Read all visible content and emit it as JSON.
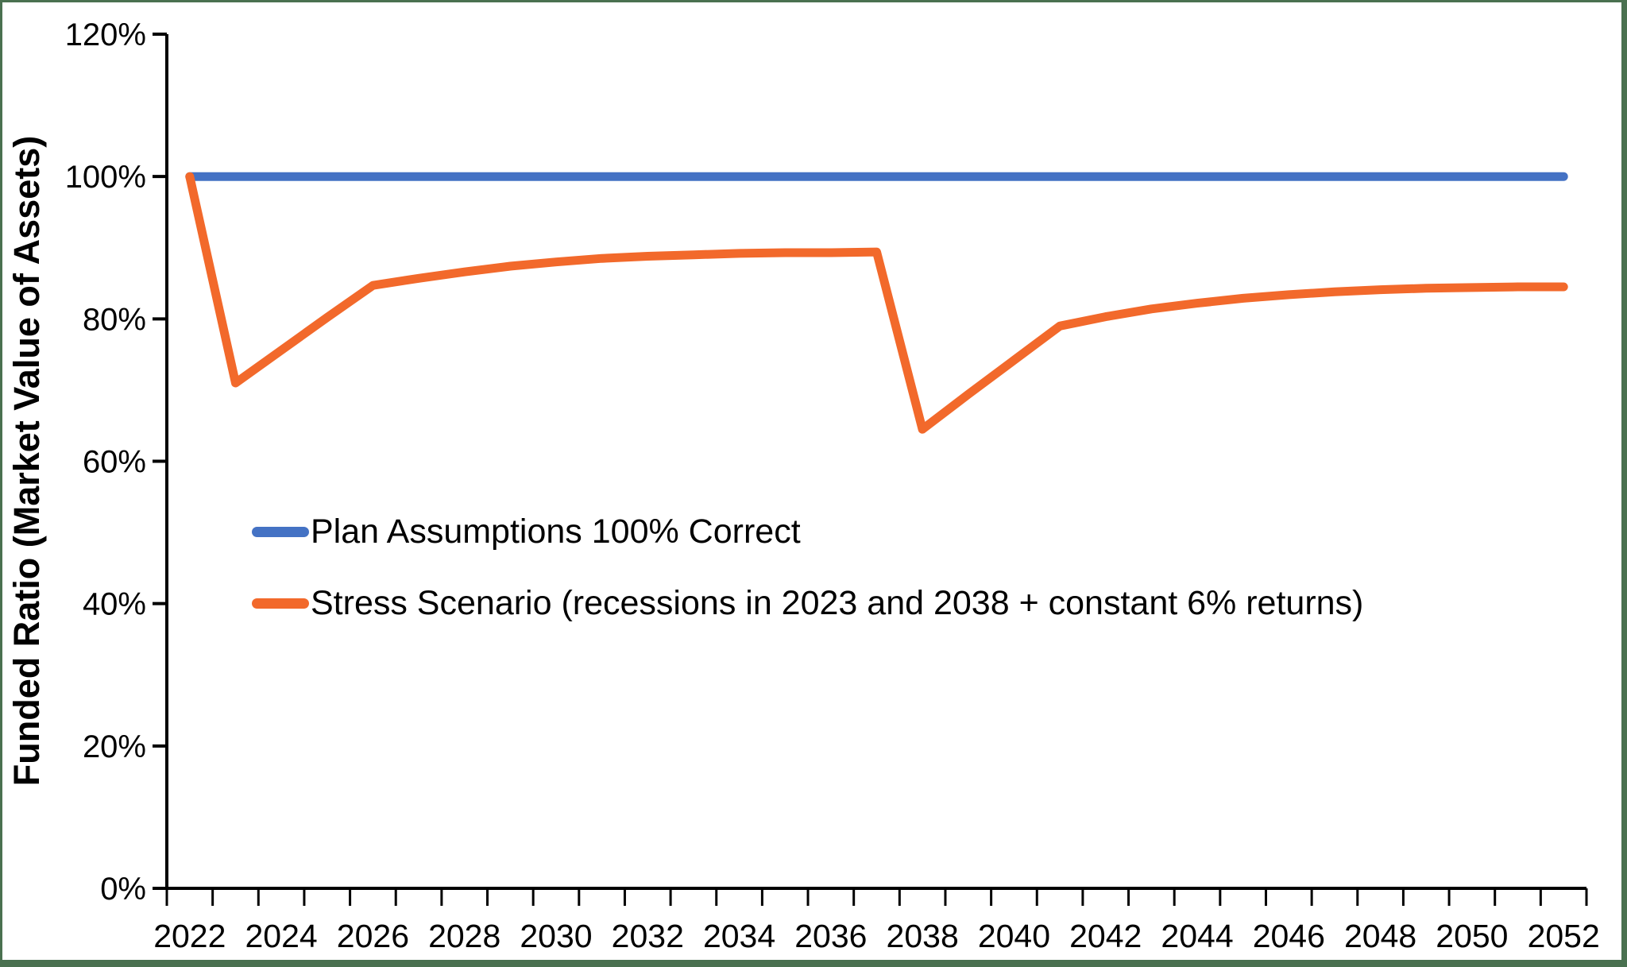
{
  "page": {
    "background": "#ffffff",
    "frame_color": "#4a7150"
  },
  "y_axis_title": "Funded Ratio (Market Value of Assets)",
  "legend": [
    {
      "label": "Plan Assumptions 100% Correct",
      "color": "#4472C4"
    },
    {
      "label": "Stress Scenario (recessions in 2023 and 2038 + constant 6% returns)",
      "color": "#F2692B"
    }
  ],
  "chart_data": {
    "type": "line",
    "title": "",
    "xlabel": "",
    "ylabel": "Funded Ratio (Market Value of Assets)",
    "axis_color": "#000000",
    "grid": false,
    "legend_position": "inside-left-middle",
    "ylim": [
      0,
      120
    ],
    "xlim": [
      2021.5,
      2052.5
    ],
    "y_tick_values": [
      0,
      20,
      40,
      60,
      80,
      100,
      120
    ],
    "y_tick_labels": [
      "0%",
      "20%",
      "40%",
      "60%",
      "80%",
      "100%",
      "120%"
    ],
    "x_tick_labels": [
      "2022",
      "2024",
      "2026",
      "2028",
      "2030",
      "2032",
      "2034",
      "2036",
      "2038",
      "2040",
      "2042",
      "2044",
      "2046",
      "2048",
      "2050",
      "2052"
    ],
    "x": [
      2022,
      2023,
      2024,
      2025,
      2026,
      2027,
      2028,
      2029,
      2030,
      2031,
      2032,
      2033,
      2034,
      2035,
      2036,
      2037,
      2038,
      2039,
      2040,
      2041,
      2042,
      2043,
      2044,
      2045,
      2046,
      2047,
      2048,
      2049,
      2050,
      2051,
      2052
    ],
    "series": [
      {
        "name": "Plan Assumptions 100% Correct",
        "color": "#4472C4",
        "values": [
          100,
          100,
          100,
          100,
          100,
          100,
          100,
          100,
          100,
          100,
          100,
          100,
          100,
          100,
          100,
          100,
          100,
          100,
          100,
          100,
          100,
          100,
          100,
          100,
          100,
          100,
          100,
          100,
          100,
          100,
          100
        ]
      },
      {
        "name": "Stress Scenario (recessions in 2023 and 2038 + constant 6% returns)",
        "color": "#F2692B",
        "values": [
          100,
          71,
          75.6,
          80.2,
          84.7,
          85.7,
          86.6,
          87.4,
          88.0,
          88.5,
          88.8,
          89.0,
          89.2,
          89.3,
          89.3,
          89.4,
          64.5,
          69.4,
          74.2,
          79.0,
          80.3,
          81.4,
          82.2,
          82.9,
          83.4,
          83.8,
          84.1,
          84.3,
          84.4,
          84.5,
          84.5
        ]
      }
    ]
  }
}
